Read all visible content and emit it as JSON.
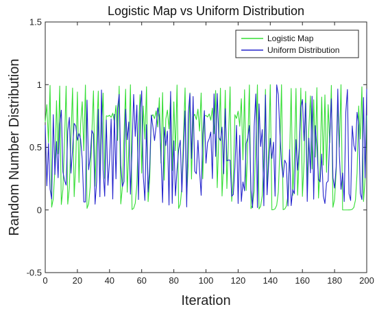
{
  "chart_data": {
    "type": "line",
    "title": "Logistic Map vs Uniform Distribution",
    "xlabel": "Iteration",
    "ylabel": "Random Number Distribution",
    "xlim": [
      0,
      200
    ],
    "ylim": [
      -0.5,
      1.5
    ],
    "xticks": [
      0,
      20,
      40,
      60,
      80,
      100,
      120,
      140,
      160,
      180,
      200
    ],
    "xtick_labels": [
      "0",
      "20",
      "40",
      "60",
      "80",
      "100",
      "120",
      "140",
      "160",
      "180",
      "200"
    ],
    "yticks": [
      -0.5,
      0,
      0.5,
      1,
      1.5
    ],
    "ytick_labels": [
      "-0.5",
      "0",
      "0.5",
      "1",
      "1.5"
    ],
    "grid": false,
    "legend_position": "top-right",
    "series": [
      {
        "name": "Logistic Map",
        "color": "#33dd33",
        "generator": {
          "kind": "logistic_map",
          "r": 4,
          "x0": 0.7,
          "count": 201
        }
      },
      {
        "name": "Uniform Distribution",
        "color": "#2222cc",
        "generator": {
          "kind": "uniform_random",
          "seed": 17,
          "count": 201
        }
      }
    ]
  }
}
